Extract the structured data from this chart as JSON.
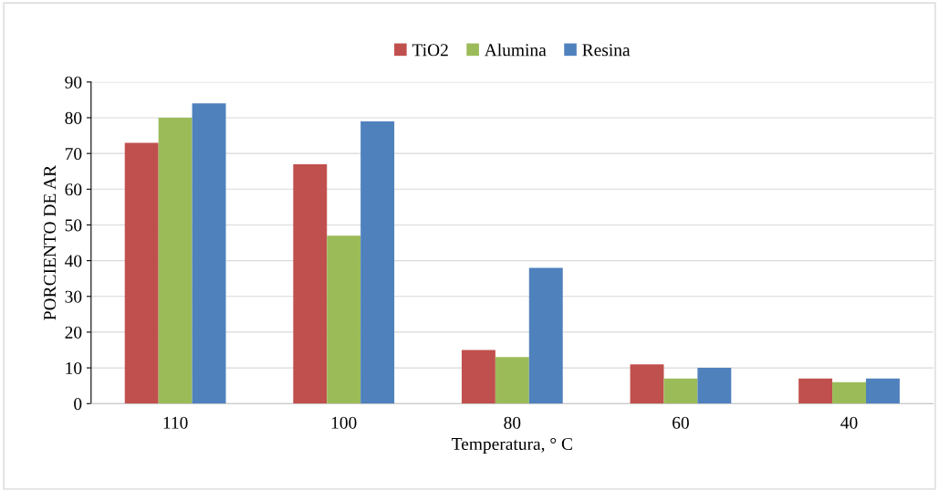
{
  "chart_data": {
    "type": "bar",
    "xlabel": "Temperatura, ° C",
    "ylabel": "PORCIENTO DE AR",
    "categories": [
      "110",
      "100",
      "80",
      "60",
      "40"
    ],
    "series": [
      {
        "name": "TiO2",
        "color": "#c0504d",
        "values": [
          73,
          67,
          15,
          11,
          7
        ]
      },
      {
        "name": "Alumina",
        "color": "#9bbb59",
        "values": [
          80,
          47,
          13,
          7,
          6
        ]
      },
      {
        "name": "Resina",
        "color": "#4f81bd",
        "values": [
          84,
          79,
          38,
          10,
          7
        ]
      }
    ],
    "ylim": [
      0,
      90
    ],
    "yticks": [
      0,
      10,
      20,
      30,
      40,
      50,
      60,
      70,
      80,
      90
    ],
    "grid": "y",
    "legend": "top"
  }
}
